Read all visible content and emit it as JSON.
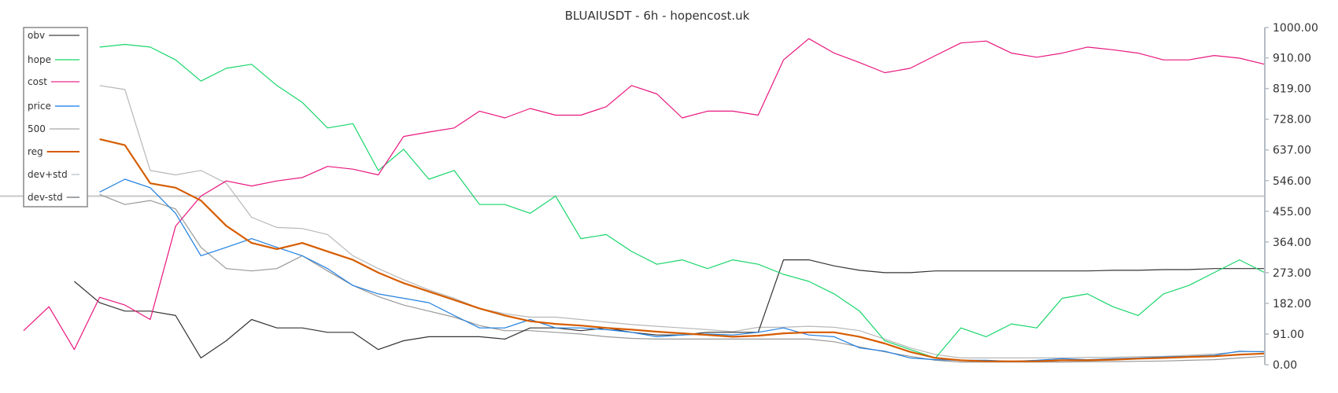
{
  "chart_data": {
    "type": "line",
    "title": "BLUAIUSDT - 6h - hopencost.uk",
    "xlabel": "",
    "ylabel": "",
    "ylim": [
      0,
      1000
    ],
    "y_ticks": [
      "0.00",
      "91.00",
      "182.00",
      "273.00",
      "364.00",
      "455.00",
      "546.00",
      "637.00",
      "728.00",
      "819.00",
      "910.00",
      "1000.00"
    ],
    "y_axis_side": "right",
    "grid": false,
    "legend_placement": "top-left",
    "x": [
      0,
      1,
      2,
      3,
      4,
      5,
      6,
      7,
      8,
      9,
      10,
      11,
      12,
      13,
      14,
      15,
      16,
      17,
      18,
      19,
      20,
      21,
      22,
      23,
      24,
      25,
      26,
      27,
      28,
      29,
      30,
      31,
      32,
      33,
      34,
      35,
      36,
      37,
      38,
      39,
      40,
      41,
      42,
      43,
      44,
      45,
      46,
      47,
      48,
      49
    ],
    "series": [
      {
        "name": "obv",
        "color": "#333333",
        "legend_color": "#888888",
        "width": 1.2,
        "values": [
          null,
          null,
          247,
          184,
          159,
          159,
          146,
          20,
          71,
          134,
          109,
          109,
          96,
          96,
          45,
          71,
          83,
          83,
          83,
          76,
          109,
          109,
          101,
          109,
          96,
          88,
          88,
          96,
          96,
          96,
          311,
          311,
          293,
          280,
          273,
          273,
          278,
          278,
          278,
          278,
          278,
          278,
          278,
          280,
          280,
          282,
          282,
          285,
          285,
          285
        ]
      },
      {
        "name": "hope",
        "color": "#19d66b",
        "legend_color": "#6ee8a0",
        "width": 1.2,
        "values": [
          null,
          null,
          null,
          942,
          950,
          942,
          904,
          841,
          879,
          891,
          828,
          778,
          702,
          715,
          576,
          639,
          550,
          576,
          475,
          475,
          449,
          500,
          374,
          386,
          336,
          298,
          311,
          285,
          311,
          298,
          268,
          247,
          210,
          159,
          71,
          45,
          20,
          109,
          83,
          121,
          109,
          197,
          210,
          172,
          146,
          210,
          235,
          273,
          311,
          273
        ]
      },
      {
        "name": "cost",
        "color": "#e8177e",
        "legend_color": "#f07ab8",
        "width": 1.2,
        "values": [
          101,
          172,
          45,
          200,
          177,
          134,
          411,
          500,
          545,
          530,
          545,
          555,
          588,
          580,
          563,
          677,
          690,
          702,
          752,
          732,
          760,
          740,
          740,
          765,
          828,
          803,
          732,
          752,
          752,
          740,
          904,
          967,
          924,
          896,
          866,
          879,
          917,
          954,
          960,
          924,
          912,
          924,
          942,
          934,
          924,
          904,
          904,
          917,
          909,
          891
        ]
      },
      {
        "name": "price",
        "color": "#1f7fe0",
        "legend_color": "#6aaaf0",
        "width": 1.2,
        "values": [
          null,
          null,
          null,
          512,
          550,
          525,
          449,
          323,
          348,
          374,
          348,
          323,
          285,
          235,
          210,
          197,
          184,
          146,
          109,
          109,
          134,
          109,
          109,
          104,
          96,
          83,
          88,
          91,
          88,
          96,
          109,
          88,
          83,
          50,
          40,
          20,
          15,
          13,
          13,
          10,
          13,
          18,
          15,
          18,
          20,
          23,
          25,
          28,
          40,
          38
        ]
      },
      {
        "name": "500",
        "color": "#c8c8c8",
        "legend_color": "#c8c8c8",
        "width": 2,
        "values": [
          500,
          500,
          500,
          500,
          500,
          500,
          500,
          500,
          500,
          500,
          500,
          500,
          500,
          500,
          500,
          500,
          500,
          500,
          500,
          500,
          500,
          500,
          500,
          500,
          500,
          500,
          500,
          500,
          500,
          500,
          500,
          500,
          500,
          500,
          500,
          500,
          500,
          500,
          500,
          500,
          500,
          500,
          500,
          500,
          500,
          500,
          500,
          500,
          500,
          500
        ]
      },
      {
        "name": "reg",
        "color": "#d65c00",
        "legend_color": "#d65c00",
        "width": 2.2,
        "values": [
          null,
          null,
          null,
          669,
          651,
          538,
          525,
          487,
          412,
          361,
          343,
          361,
          336,
          311,
          273,
          242,
          217,
          192,
          167,
          146,
          129,
          121,
          116,
          109,
          104,
          98,
          93,
          88,
          83,
          86,
          93,
          96,
          96,
          83,
          63,
          38,
          20,
          13,
          10,
          10,
          10,
          13,
          13,
          15,
          18,
          20,
          23,
          25,
          30,
          33
        ]
      },
      {
        "name": "dev+std",
        "color": "#b8b8b8",
        "legend_color": "#d3d6da",
        "width": 1.2,
        "values": [
          null,
          null,
          null,
          828,
          816,
          576,
          563,
          576,
          538,
          437,
          407,
          404,
          386,
          323,
          285,
          252,
          222,
          197,
          167,
          151,
          141,
          141,
          134,
          126,
          119,
          114,
          109,
          104,
          98,
          111,
          111,
          114,
          111,
          101,
          76,
          50,
          30,
          20,
          20,
          20,
          20,
          20,
          22,
          22,
          24,
          25,
          28,
          32,
          38,
          40
        ]
      },
      {
        "name": "dev-std",
        "color": "#999999",
        "legend_color": "#a0a4a8",
        "width": 1.2,
        "values": [
          null,
          null,
          null,
          505,
          475,
          487,
          462,
          348,
          285,
          278,
          285,
          323,
          278,
          235,
          202,
          177,
          159,
          141,
          116,
          101,
          101,
          96,
          91,
          83,
          78,
          76,
          76,
          76,
          76,
          76,
          76,
          76,
          68,
          53,
          38,
          25,
          13,
          8,
          8,
          8,
          8,
          8,
          9,
          9,
          10,
          11,
          13,
          15,
          20,
          25
        ]
      }
    ]
  }
}
